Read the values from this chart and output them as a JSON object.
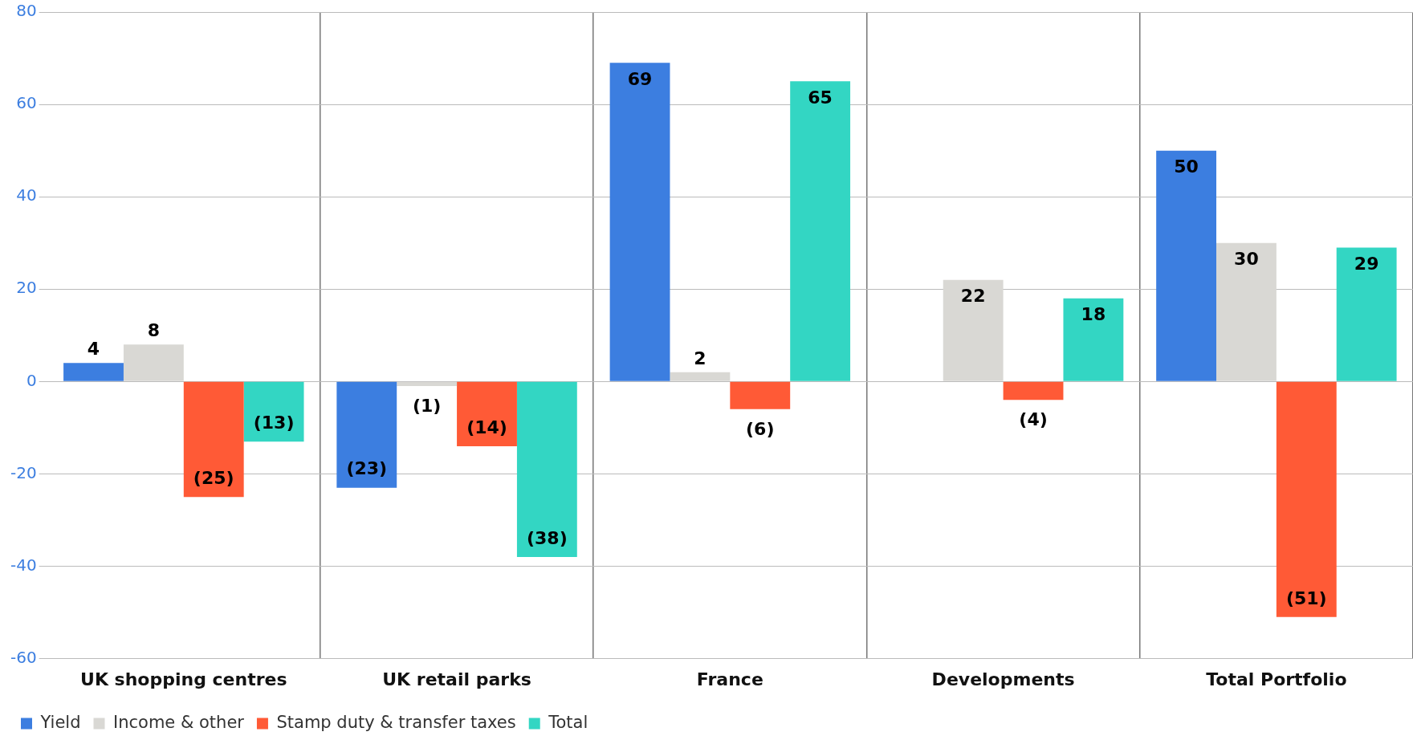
{
  "chart_data": {
    "type": "bar",
    "categories": [
      "UK shopping centres",
      "UK retail parks",
      "France",
      "Developments",
      "Total Portfolio"
    ],
    "series": [
      {
        "name": "Yield",
        "color": "#3c7ee0",
        "values": [
          4,
          -23,
          69,
          null,
          50
        ],
        "value_labels": [
          "4",
          "(23)",
          "69",
          null,
          "50"
        ]
      },
      {
        "name": "Income & other",
        "color": "#d9d8d4",
        "values": [
          8,
          -1,
          2,
          22,
          30
        ],
        "value_labels": [
          "8",
          "(1)",
          "2",
          "22",
          "30"
        ]
      },
      {
        "name": "Stamp duty & transfer taxes",
        "color": "#ff5a36",
        "values": [
          -25,
          -14,
          -6,
          -4,
          -51
        ],
        "value_labels": [
          "(25)",
          "(14)",
          "(6)",
          "(4)",
          "(51)"
        ]
      },
      {
        "name": "Total",
        "color": "#33d6c3",
        "values": [
          -13,
          -38,
          65,
          18,
          29
        ],
        "value_labels": [
          "(13)",
          "(38)",
          "65",
          "18",
          "29"
        ]
      }
    ],
    "ylim": [
      -60,
      80
    ],
    "yticks": [
      -60,
      -40,
      -20,
      0,
      20,
      40,
      60,
      80
    ],
    "grid": true,
    "legend": "bottom left"
  }
}
